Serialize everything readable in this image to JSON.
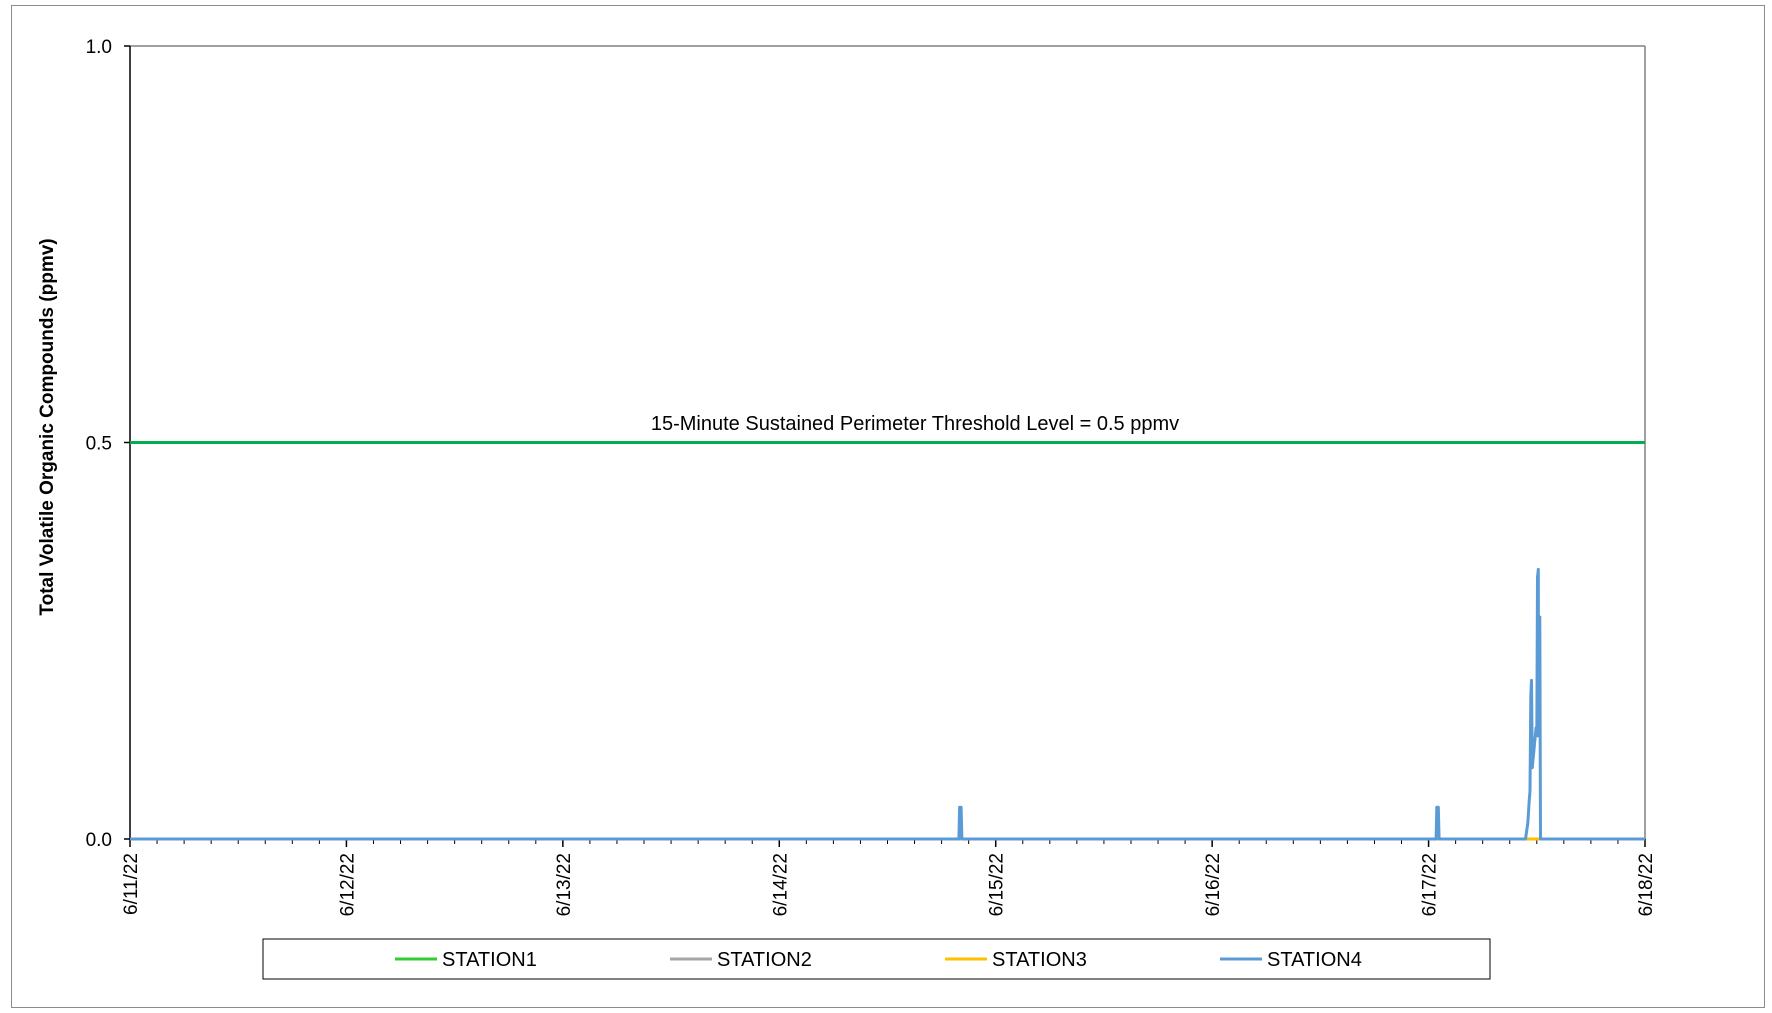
{
  "chart_data": {
    "type": "line",
    "title": "",
    "ylabel": "Total Volatile Organic Compounds (ppmv)",
    "xlabel": "",
    "ylim": [
      0,
      1.0
    ],
    "yticks": [
      {
        "value": 0.0,
        "label": "0.0"
      },
      {
        "value": 0.5,
        "label": "0.5"
      },
      {
        "value": 1.0,
        "label": "1.0"
      }
    ],
    "xticks": [
      "6/11/22",
      "6/12/22",
      "6/13/22",
      "6/14/22",
      "6/15/22",
      "6/16/22",
      "6/17/22",
      "6/18/22"
    ],
    "xrange": [
      "2022-06-11",
      "2022-06-18"
    ],
    "grid": false,
    "legend_position": "bottom",
    "threshold": {
      "value": 0.5,
      "label": "15-Minute Sustained Perimeter Threshold Level = 0.5 ppmv",
      "color": "#00b050"
    },
    "series": [
      {
        "name": "STATION1",
        "color": "#33cc33",
        "points": [
          [
            "2022-06-11 00:00",
            0.0
          ],
          [
            "2022-06-18 00:00",
            0.0
          ]
        ]
      },
      {
        "name": "STATION2",
        "color": "#a6a6a6",
        "points": [
          [
            "2022-06-11 00:00",
            0.0
          ],
          [
            "2022-06-18 00:00",
            0.0
          ]
        ]
      },
      {
        "name": "STATION3",
        "color": "#ffc000",
        "points": [
          [
            "2022-06-11 00:00",
            0.0
          ],
          [
            "2022-06-17 11:00",
            0.0
          ],
          [
            "2022-06-17 12:00",
            0.0
          ],
          [
            "2022-06-18 00:00",
            0.0
          ]
        ]
      },
      {
        "name": "STATION4",
        "color": "#5b9bd5",
        "points": [
          [
            "2022-06-11 00:00",
            0.0
          ],
          [
            "2022-06-14 19:55",
            0.0
          ],
          [
            "2022-06-14 20:00",
            0.04
          ],
          [
            "2022-06-14 20:10",
            0.04
          ],
          [
            "2022-06-14 20:15",
            0.0
          ],
          [
            "2022-06-17 00:50",
            0.0
          ],
          [
            "2022-06-17 00:55",
            0.04
          ],
          [
            "2022-06-17 01:05",
            0.04
          ],
          [
            "2022-06-17 01:10",
            0.0
          ],
          [
            "2022-06-17 10:45",
            0.0
          ],
          [
            "2022-06-17 11:00",
            0.02
          ],
          [
            "2022-06-17 11:10",
            0.05
          ],
          [
            "2022-06-17 11:15",
            0.06
          ],
          [
            "2022-06-17 11:20",
            0.18
          ],
          [
            "2022-06-17 11:25",
            0.2
          ],
          [
            "2022-06-17 11:30",
            0.09
          ],
          [
            "2022-06-17 11:35",
            0.1
          ],
          [
            "2022-06-17 11:40",
            0.11
          ],
          [
            "2022-06-17 11:45",
            0.12
          ],
          [
            "2022-06-17 11:50",
            0.13
          ],
          [
            "2022-06-17 11:55",
            0.14
          ],
          [
            "2022-06-17 12:00",
            0.13
          ],
          [
            "2022-06-17 12:05",
            0.33
          ],
          [
            "2022-06-17 12:10",
            0.34
          ],
          [
            "2022-06-17 12:12",
            0.13
          ],
          [
            "2022-06-17 12:15",
            0.27
          ],
          [
            "2022-06-17 12:18",
            0.15
          ],
          [
            "2022-06-17 12:20",
            0.28
          ],
          [
            "2022-06-17 12:25",
            0.0
          ],
          [
            "2022-06-18 00:00",
            0.0
          ]
        ]
      }
    ]
  }
}
